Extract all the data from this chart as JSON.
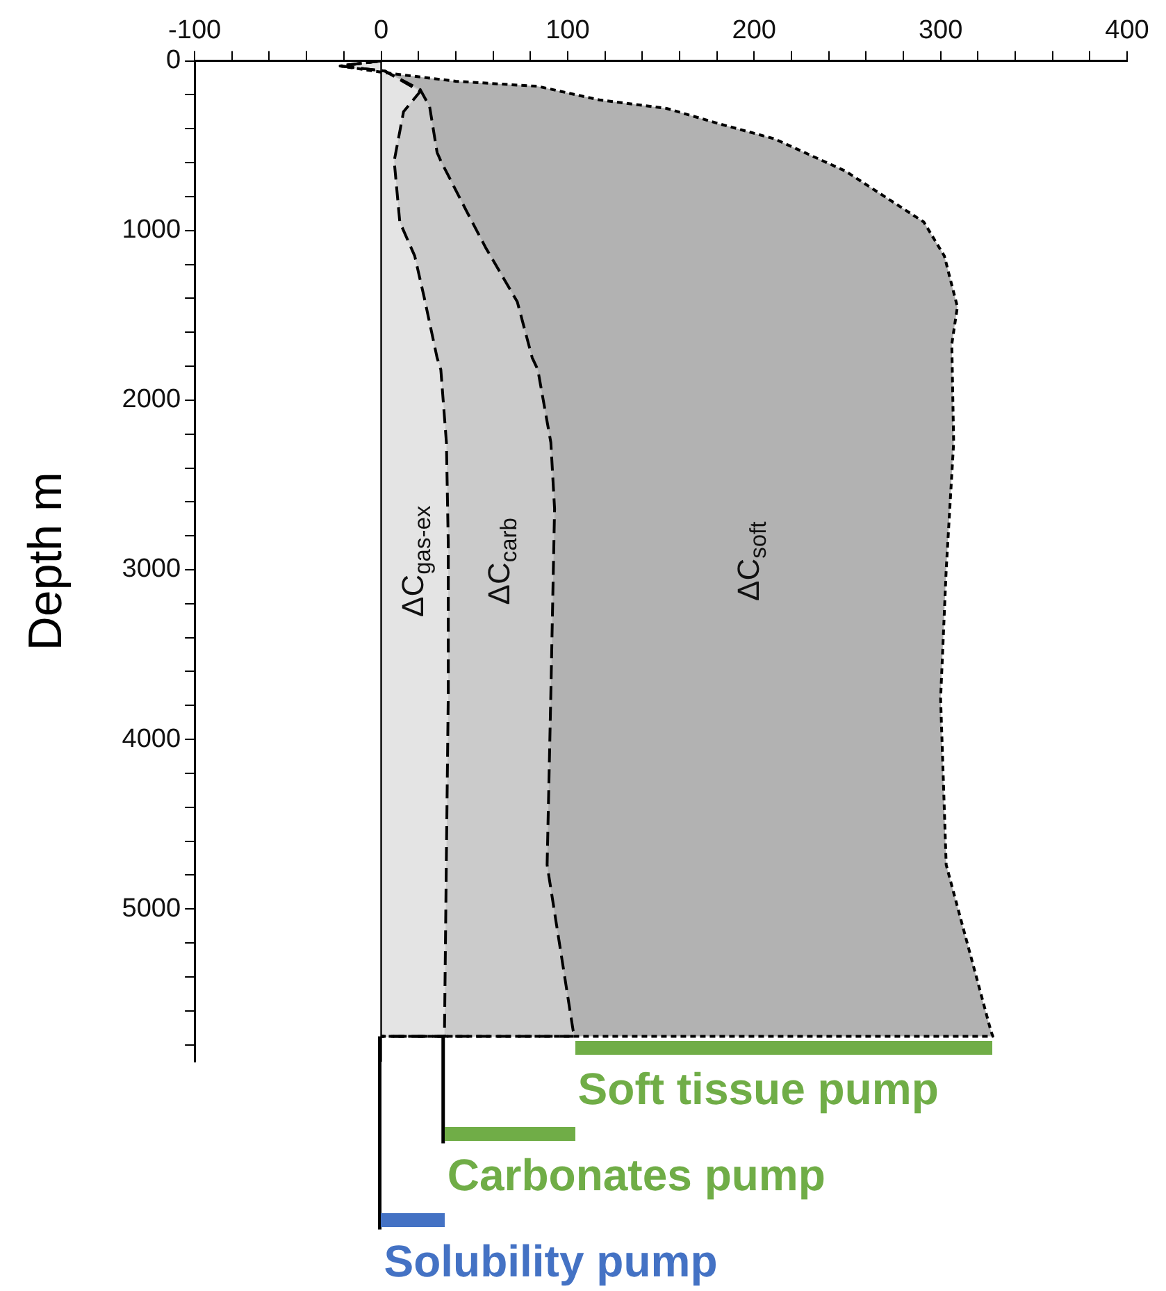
{
  "chart_data": {
    "type": "area",
    "ylabel": "Depth m",
    "grid": false,
    "legend": false,
    "xlim": [
      -100,
      400
    ],
    "ylim": [
      5900,
      0
    ],
    "xticks": [
      -100,
      {
        "value": -80,
        "label": null
      },
      {
        "value": -60,
        "label": null
      },
      {
        "value": -40,
        "label": null
      },
      {
        "value": -20,
        "label": null
      },
      0,
      {
        "value": 20,
        "label": null
      },
      {
        "value": 40,
        "label": null
      },
      {
        "value": 60,
        "label": null
      },
      {
        "value": 80,
        "label": null
      },
      100,
      {
        "value": 120,
        "label": null
      },
      {
        "value": 140,
        "label": null
      },
      {
        "value": 160,
        "label": null
      },
      {
        "value": 180,
        "label": null
      },
      200,
      {
        "value": 220,
        "label": null
      },
      {
        "value": 240,
        "label": null
      },
      {
        "value": 260,
        "label": null
      },
      {
        "value": 280,
        "label": null
      },
      300,
      {
        "value": 320,
        "label": null
      },
      {
        "value": 340,
        "label": null
      },
      {
        "value": 360,
        "label": null
      },
      {
        "value": 380,
        "label": null
      },
      400
    ],
    "yticks": [
      0,
      {
        "value": 200,
        "label": null
      },
      {
        "value": 400,
        "label": null
      },
      {
        "value": 600,
        "label": null
      },
      {
        "value": 800,
        "label": null
      },
      1000,
      {
        "value": 1200,
        "label": null
      },
      {
        "value": 1400,
        "label": null
      },
      {
        "value": 1600,
        "label": null
      },
      {
        "value": 1800,
        "label": null
      },
      2000,
      {
        "value": 2200,
        "label": null
      },
      {
        "value": 2400,
        "label": null
      },
      {
        "value": 2600,
        "label": null
      },
      {
        "value": 2800,
        "label": null
      },
      3000,
      {
        "value": 3200,
        "label": null
      },
      {
        "value": 3400,
        "label": null
      },
      {
        "value": 3600,
        "label": null
      },
      {
        "value": 3800,
        "label": null
      },
      4000,
      {
        "value": 4200,
        "label": null
      },
      {
        "value": 4400,
        "label": null
      },
      {
        "value": 4600,
        "label": null
      },
      {
        "value": 4800,
        "label": null
      },
      5000,
      {
        "value": 5200,
        "label": null
      },
      {
        "value": 5400,
        "label": null
      },
      {
        "value": 5600,
        "label": null
      },
      {
        "value": 5800,
        "label": null
      }
    ],
    "series": [
      {
        "name": "ΔC$_{gas-ex}$",
        "color": "#e4e4e4",
        "line_style": "dashed",
        "x": [
          0,
          -22,
          2,
          21,
          12,
          7,
          10,
          18,
          23,
          30,
          32,
          35,
          36,
          36,
          35,
          34,
          34,
          0
        ],
        "values": [
          0,
          30,
          60,
          180,
          300,
          590,
          950,
          1150,
          1390,
          1750,
          1820,
          2250,
          2850,
          3730,
          4680,
          5690,
          5750,
          5750
        ]
      },
      {
        "name": "ΔC$_{carb}$",
        "color": "#cbcbcb",
        "line_style": "dashed",
        "x": [
          0,
          -22,
          2,
          21,
          26,
          30,
          32,
          46,
          56,
          73,
          81,
          84,
          91,
          93,
          91,
          89,
          103,
          104,
          0
        ],
        "values": [
          0,
          30,
          60,
          170,
          270,
          540,
          590,
          890,
          1100,
          1420,
          1750,
          1820,
          2250,
          2640,
          3730,
          4740,
          5720,
          5750,
          5750
        ]
      },
      {
        "name": "ΔC$_{soft}$",
        "color": "#b2b2b2",
        "line_style": "dotted",
        "x": [
          0,
          -22,
          2,
          40,
          84,
          117,
          153,
          181,
          211,
          249,
          291,
          302,
          309,
          306,
          307,
          303,
          300,
          303,
          327,
          328,
          0
        ],
        "values": [
          0,
          30,
          70,
          120,
          150,
          230,
          280,
          370,
          460,
          650,
          950,
          1150,
          1450,
          1670,
          2250,
          3000,
          3760,
          4740,
          5720,
          5750,
          5750
        ]
      }
    ],
    "ref_lines": [
      {
        "axis": "x",
        "value": 0,
        "color": "#000000"
      }
    ],
    "annotations": [
      "Soft tissue pump",
      {
        "text": "Carbonates pump",
        "x": 34,
        "y": 5750
      },
      {
        "text": "Solubility pump",
        "x": 0,
        "y": 5750
      }
    ]
  }
}
